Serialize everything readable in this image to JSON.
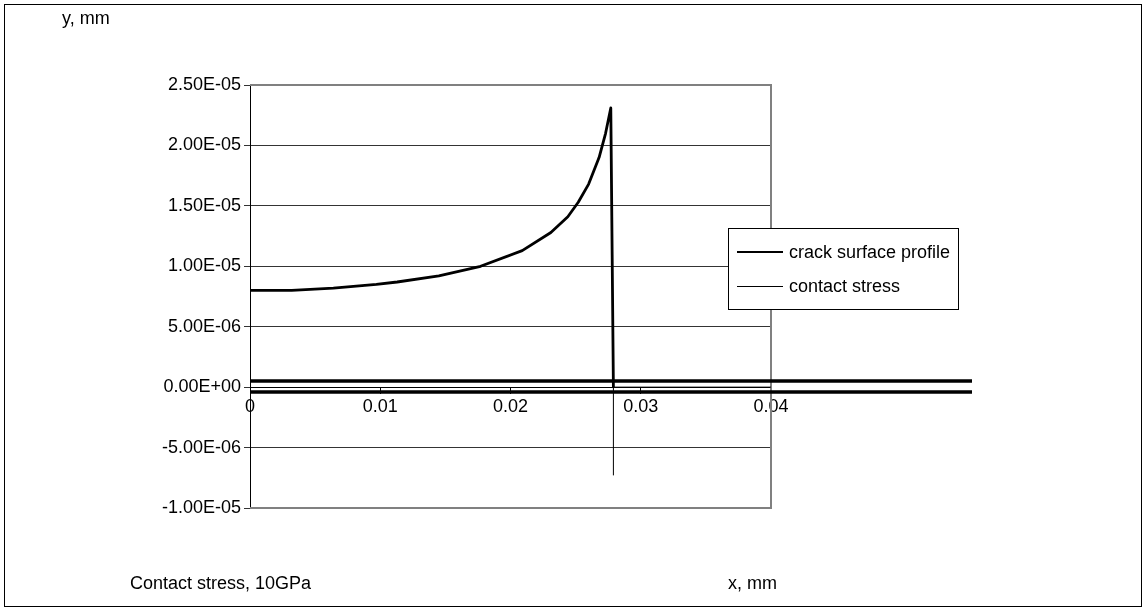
{
  "chart_data": {
    "type": "line",
    "ylabel": "y, mm",
    "xlabel": "x, mm",
    "annotations": [
      "Contact stress, 10GPa"
    ],
    "series": [
      {
        "name": "crack surface profile",
        "color": "#000000",
        "x": [
          0,
          0.0032,
          0.0064,
          0.0097,
          0.0113,
          0.0145,
          0.0177,
          0.0209,
          0.0231,
          0.0244,
          0.0252,
          0.026,
          0.0268,
          0.0273,
          0.0277,
          0.0279
        ],
        "values": [
          8e-06,
          8e-06,
          8.2e-06,
          8.5e-06,
          8.7e-06,
          9.2e-06,
          1e-05,
          1.13e-05,
          1.28e-05,
          1.41e-05,
          1.53e-05,
          1.68e-05,
          1.9e-05,
          2.1e-05,
          2.31e-05,
          0
        ]
      },
      {
        "name": "contact stress",
        "color": "#000000",
        "x": [
          0.0279,
          0.0279,
          0.04
        ],
        "values": [
          -7.3e-06,
          0,
          0
        ]
      }
    ],
    "xlim": [
      0,
      0.04
    ],
    "xticks": [
      0,
      0.01,
      0.02,
      0.03,
      0.04
    ],
    "ylim": [
      -1e-05,
      2.5e-05
    ],
    "yticks": [
      {
        "value": -1e-05,
        "label": "-1.00E-05"
      },
      {
        "value": -5e-06,
        "label": "-5.00E-06"
      },
      {
        "value": 0,
        "label": "0.00E+00"
      },
      {
        "value": 5e-06,
        "label": "5.00E-06"
      },
      {
        "value": 1e-05,
        "label": "1.00E-05"
      },
      {
        "value": 1.5e-05,
        "label": "1.50E-05"
      },
      {
        "value": 2e-05,
        "label": "2.00E-05"
      },
      {
        "value": 2.5e-05,
        "label": "2.50E-05"
      }
    ],
    "ref_lines": [
      {
        "axis": "y",
        "value": 5e-07,
        "color": "#000000"
      },
      {
        "axis": "y",
        "value": -4e-07,
        "color": "#000000"
      }
    ],
    "grid": "y",
    "legend": "right",
    "marker": "none",
    "line_style": "solid"
  }
}
